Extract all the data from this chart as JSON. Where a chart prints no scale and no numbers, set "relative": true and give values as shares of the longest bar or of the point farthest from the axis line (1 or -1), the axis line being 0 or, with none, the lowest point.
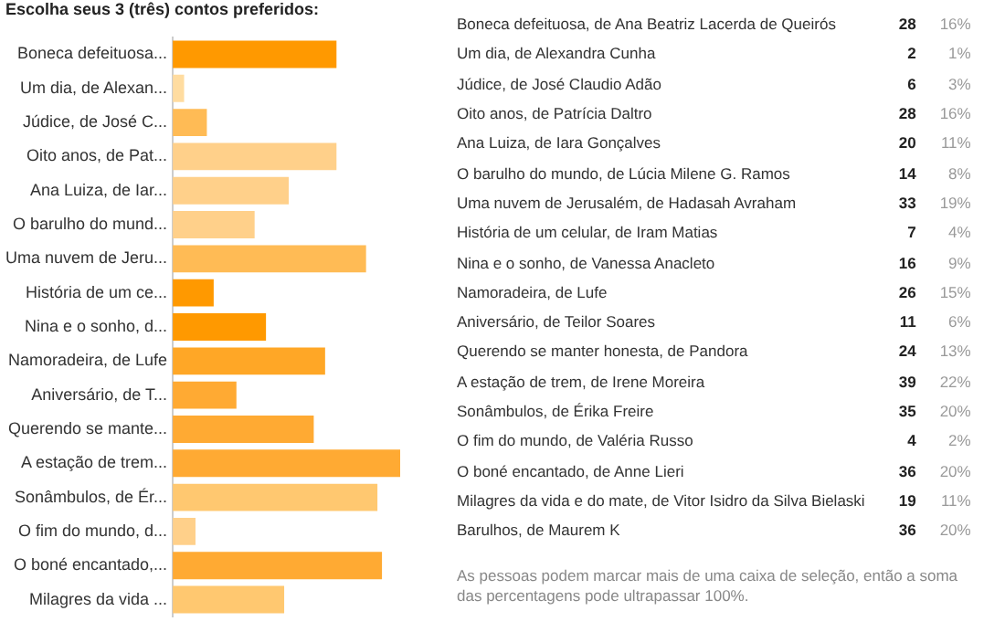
{
  "chart_data": [
    {
      "type": "bar",
      "title": "Escolha seus 3 (três) contos preferidos:",
      "orientation": "horizontal",
      "relative": true,
      "categories": [
        "Boneca defeituosa...",
        "Um dia, de Alexan...",
        "Júdice, de José C...",
        "Oito anos, de Pat...",
        "Ana Luiza, de Iar...",
        "O barulho do mund...",
        "Uma nuvem de Jeru...",
        "História de um ce...",
        "Nina e o sonho, d...",
        "Namoradeira, de Lufe",
        "Aniversário, de T...",
        "Querendo se mante...",
        "A estação de trem...",
        "Sonâmbulos, de Ér...",
        "O fim do mundo, d...",
        "O boné encantado,...",
        "Milagres da vida ..."
      ],
      "values": [
        0.72,
        0.05,
        0.15,
        0.72,
        0.51,
        0.36,
        0.85,
        0.18,
        0.41,
        0.67,
        0.28,
        0.62,
        1,
        0.9,
        0.1,
        0.92,
        0.49
      ],
      "colors": [
        "#ff9900",
        "#ffdca0",
        "#ffbb55",
        "#ffd08a",
        "#ffd08a",
        "#ffd08a",
        "#ffbb55",
        "#ff9900",
        "#ff9900",
        "#ffa726",
        "#ffaa33",
        "#ffaa33",
        "#ffaa33",
        "#ffc870",
        "#ffd08a",
        "#ffaa33",
        "#ffc870"
      ],
      "legend": false
    },
    {
      "type": "other",
      "categories": [
        "Boneca defeituosa, de Ana Beatriz Lacerda de Queirós",
        "Um dia, de Alexandra Cunha",
        "Júdice, de José Claudio Adão",
        "Oito anos, de Patrícia Daltro",
        "Ana Luiza, de Iara Gonçalves",
        "O barulho do mundo, de Lúcia Milene G. Ramos",
        "Uma nuvem de Jerusalém, de Hadasah Avraham",
        "História de um celular, de Iram Matias",
        "Nina e o sonho, de Vanessa Anacleto",
        "Namoradeira, de Lufe",
        "Aniversário, de Teilor Soares",
        "Querendo se manter honesta, de Pandora",
        "A estação de trem, de Irene Moreira",
        "Sonâmbulos, de Érika Freire",
        "O fim do mundo, de Valéria Russo",
        "O boné encantado, de Anne Lieri",
        "Milagres da vida e do mate, de Vitor Isidro da Silva Bielaski",
        "Barulhos, de Maurem K"
      ],
      "data_labels": true,
      "series": [
        {
          "values": [
            28,
            2,
            6,
            28,
            20,
            14,
            33,
            7,
            16,
            26,
            11,
            24,
            39,
            35,
            4,
            36,
            19,
            36
          ]
        },
        {
          "values": [
            16,
            1,
            3,
            16,
            11,
            8,
            19,
            4,
            9,
            15,
            6,
            13,
            22,
            20,
            2,
            20,
            11,
            20
          ],
          "value_labels": [
            "16%",
            "1%",
            "3%",
            "16%",
            "11%",
            "8%",
            "19%",
            "4%",
            "9%",
            "15%",
            "6%",
            "13%",
            "22%",
            "20%",
            "2%",
            "20%",
            "11%",
            "20%"
          ]
        }
      ],
      "annotations": [
        "As pessoas podem marcar mais de uma caixa de seleção, então a soma das percentagens pode ultrapassar 100%."
      ]
    }
  ]
}
